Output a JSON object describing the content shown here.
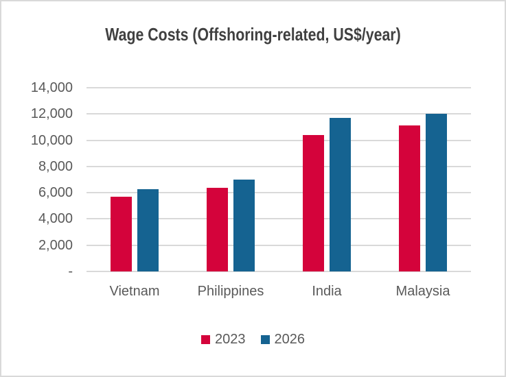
{
  "window": {
    "background": "#ffffff",
    "border_color": "#d9d9d9"
  },
  "colors": {
    "title_text": "#404040",
    "axis_text": "#595959",
    "gridline": "#d9d9d9",
    "series_2023": "#d4033b",
    "series_2026": "#156391"
  },
  "chart_data": {
    "type": "bar",
    "title": "Wage Costs (Offshoring-related, US$/year)",
    "xlabel": "",
    "ylabel": "",
    "categories": [
      "Vietnam",
      "Philippines",
      "India",
      "Malaysia"
    ],
    "series": [
      {
        "name": "2023",
        "color": "#d4033b",
        "values": [
          5700,
          6400,
          10400,
          11150
        ]
      },
      {
        "name": "2026",
        "color": "#156391",
        "values": [
          6250,
          7000,
          11700,
          12000
        ]
      }
    ],
    "ylim": [
      0,
      14000
    ],
    "ytick_step": 2000,
    "ytick_labels": [
      "-",
      "2,000",
      "4,000",
      "6,000",
      "8,000",
      "10,000",
      "12,000",
      "14,000"
    ],
    "grid": true,
    "legend_position": "bottom"
  }
}
